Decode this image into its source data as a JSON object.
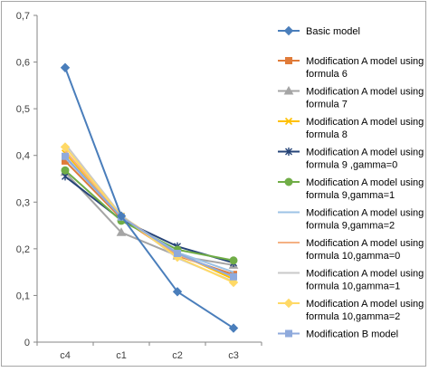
{
  "chart_data": {
    "type": "line",
    "title": "",
    "xlabel": "",
    "ylabel": "",
    "categories": [
      "c4",
      "c1",
      "c2",
      "c3"
    ],
    "ylim": [
      0,
      0.7
    ],
    "yticks": [
      0,
      0.1,
      0.2,
      0.3,
      0.4,
      0.5,
      0.6,
      0.7
    ],
    "ytick_labels": [
      "0",
      "0,1",
      "0,2",
      "0,3",
      "0,4",
      "0,5",
      "0,6",
      "0,7"
    ],
    "grid": false,
    "legend_position": "right",
    "series": [
      {
        "name": "Basic model",
        "legend_lines": [
          "Basic model"
        ],
        "color": "#4a7ebb",
        "marker": "diamond",
        "values": [
          0.588,
          0.27,
          0.108,
          0.03
        ]
      },
      {
        "name": "Modification A model using formula 6",
        "legend_lines": [
          "Modification A model using",
          "formula 6"
        ],
        "color": "#e07b39",
        "marker": "square",
        "values": [
          0.388,
          0.265,
          0.185,
          0.145
        ]
      },
      {
        "name": "Modification A model using formula 7",
        "legend_lines": [
          "Modification A model using",
          "formula 7"
        ],
        "color": "#a5a5a5",
        "marker": "triangle",
        "values": [
          0.364,
          0.235,
          0.185,
          0.165
        ]
      },
      {
        "name": "Modification A model using formula 8",
        "legend_lines": [
          "Modification A model using",
          "formula 8"
        ],
        "color": "#ffc000",
        "marker": "x",
        "values": [
          0.405,
          0.27,
          0.19,
          0.135
        ]
      },
      {
        "name": "Modification A model using formula 9 ,gamma=0",
        "legend_lines": [
          "Modification A model using",
          "formula 9 ,gamma=0"
        ],
        "color": "#264478",
        "marker": "star",
        "values": [
          0.355,
          0.262,
          0.205,
          0.17
        ]
      },
      {
        "name": "Modification A model using formula 9,gamma=1",
        "legend_lines": [
          "Modification A model using",
          "formula 9,gamma=1"
        ],
        "color": "#70ad47",
        "marker": "circle",
        "values": [
          0.368,
          0.26,
          0.198,
          0.175
        ]
      },
      {
        "name": "Modification A model using formula 9,gamma=2",
        "legend_lines": [
          "Modification A model using",
          "formula 9,gamma=2"
        ],
        "color": "#9dc3e6",
        "marker": "line",
        "values": [
          0.395,
          0.268,
          0.192,
          0.15
        ]
      },
      {
        "name": "Modification A model using formula 10,gamma=0",
        "legend_lines": [
          "Modification A model using",
          "formula 10,gamma=0"
        ],
        "color": "#f4b183",
        "marker": "line",
        "values": [
          0.41,
          0.27,
          0.188,
          0.14
        ]
      },
      {
        "name": "Modification A model using formula 10,gamma=1",
        "legend_lines": [
          "Modification A model using",
          "formula 10,gamma=1"
        ],
        "color": "#c9c9c9",
        "marker": "line",
        "values": [
          0.425,
          0.272,
          0.18,
          0.13
        ]
      },
      {
        "name": "Modification A model using formula 10,gamma=2",
        "legend_lines": [
          "Modification A model using",
          "formula 10,gamma=2"
        ],
        "color": "#ffd966",
        "marker": "diamond",
        "values": [
          0.418,
          0.27,
          0.182,
          0.128
        ]
      },
      {
        "name": "Modification B model",
        "legend_lines": [
          "Modification B model"
        ],
        "color": "#8faadc",
        "marker": "square",
        "values": [
          0.398,
          0.268,
          0.19,
          0.14
        ]
      }
    ]
  }
}
